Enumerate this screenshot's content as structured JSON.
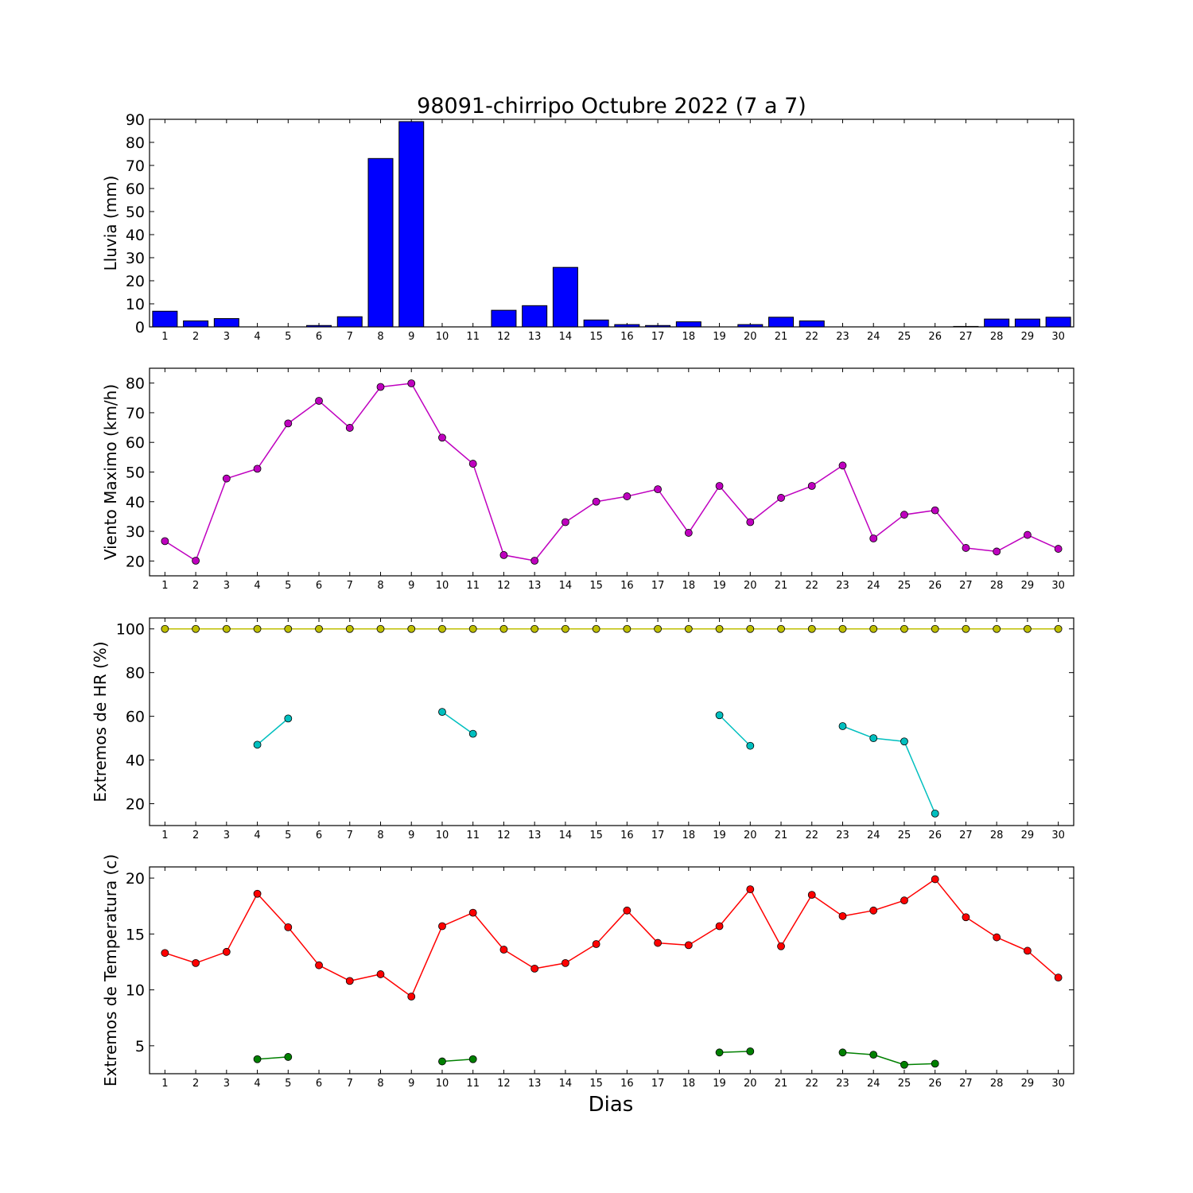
{
  "title": "98091-chirripo Octubre 2022  (7 a 7)",
  "xlabel": "Dias",
  "colors": {
    "rain_bar": "#0000ff",
    "wind": "#bf00bf",
    "hr_max": "#bfbf00",
    "hr_min": "#00bfbf",
    "temp_max": "#ff0000",
    "temp_min": "#008000"
  },
  "chart_data": [
    {
      "type": "bar",
      "ylabel": "Lluvia (mm)",
      "ylim": [
        0,
        90
      ],
      "yticks": [
        0,
        10,
        20,
        30,
        40,
        50,
        60,
        70,
        80,
        90
      ],
      "categories": [
        1,
        2,
        3,
        4,
        5,
        6,
        7,
        8,
        9,
        10,
        11,
        12,
        13,
        14,
        15,
        16,
        17,
        18,
        19,
        20,
        21,
        22,
        23,
        24,
        25,
        26,
        27,
        28,
        29,
        30
      ],
      "values": [
        6.8,
        2.6,
        3.6,
        0,
        0,
        0.6,
        4.4,
        73,
        89,
        0,
        0,
        7.2,
        9.2,
        25.8,
        3,
        1,
        0.6,
        2.2,
        0,
        1,
        4.2,
        2.6,
        0,
        0,
        0,
        0,
        0.2,
        3.4,
        3.4,
        4.2
      ]
    },
    {
      "type": "line",
      "ylabel": "Viento Maximo (km/h)",
      "ylim": [
        15,
        85
      ],
      "yticks": [
        20,
        30,
        40,
        50,
        60,
        70,
        80
      ],
      "x": [
        1,
        2,
        3,
        4,
        5,
        6,
        7,
        8,
        9,
        10,
        11,
        12,
        13,
        14,
        15,
        16,
        17,
        18,
        19,
        20,
        21,
        22,
        23,
        24,
        25,
        26,
        27,
        28,
        29,
        30
      ],
      "series": [
        {
          "values": [
            26.7,
            20.1,
            47.8,
            51.1,
            66.4,
            74,
            64.9,
            78.7,
            79.9,
            61.6,
            52.8,
            22,
            20.1,
            33.1,
            40,
            41.8,
            44.2,
            29.5,
            45.3,
            33.1,
            41.3,
            45.3,
            52.2,
            27.6,
            35.6,
            37.1,
            24.4,
            23.2,
            28.8,
            24.1
          ]
        }
      ]
    },
    {
      "type": "line",
      "ylabel": "Extremos de HR (%)",
      "ylim": [
        10,
        105
      ],
      "yticks": [
        20,
        40,
        60,
        80,
        100
      ],
      "x": [
        1,
        2,
        3,
        4,
        5,
        6,
        7,
        8,
        9,
        10,
        11,
        12,
        13,
        14,
        15,
        16,
        17,
        18,
        19,
        20,
        21,
        22,
        23,
        24,
        25,
        26,
        27,
        28,
        29,
        30
      ],
      "series": [
        {
          "values": [
            100,
            100,
            100,
            100,
            100,
            100,
            100,
            100,
            100,
            100,
            100,
            100,
            100,
            100,
            100,
            100,
            100,
            100,
            100,
            100,
            100,
            100,
            100,
            100,
            100,
            100,
            100,
            100,
            100,
            100
          ]
        },
        {
          "values": [
            null,
            null,
            null,
            47,
            59,
            null,
            null,
            null,
            null,
            62,
            52,
            null,
            null,
            null,
            null,
            null,
            null,
            null,
            60.5,
            46.5,
            null,
            null,
            55.5,
            50,
            48.5,
            15.5,
            null,
            null,
            null,
            null
          ]
        }
      ]
    },
    {
      "type": "line",
      "ylabel": "Extremos de Temperatura (c)",
      "ylim": [
        2.5,
        21
      ],
      "yticks": [
        5,
        10,
        15,
        20
      ],
      "x": [
        1,
        2,
        3,
        4,
        5,
        6,
        7,
        8,
        9,
        10,
        11,
        12,
        13,
        14,
        15,
        16,
        17,
        18,
        19,
        20,
        21,
        22,
        23,
        24,
        25,
        26,
        27,
        28,
        29,
        30
      ],
      "series": [
        {
          "values": [
            13.3,
            12.4,
            13.4,
            18.6,
            15.6,
            12.2,
            10.8,
            11.4,
            9.4,
            15.7,
            16.9,
            13.6,
            11.9,
            12.4,
            14.1,
            17.1,
            14.2,
            14,
            15.7,
            19,
            13.9,
            18.5,
            16.6,
            17.1,
            18,
            19.9,
            16.5,
            14.7,
            13.5,
            11.1
          ]
        },
        {
          "values": [
            null,
            null,
            null,
            3.8,
            4,
            null,
            null,
            null,
            null,
            3.6,
            3.8,
            null,
            null,
            null,
            null,
            null,
            null,
            null,
            4.4,
            4.5,
            null,
            null,
            4.4,
            4.2,
            3.3,
            3.4,
            null,
            null,
            null,
            null
          ]
        }
      ]
    }
  ]
}
